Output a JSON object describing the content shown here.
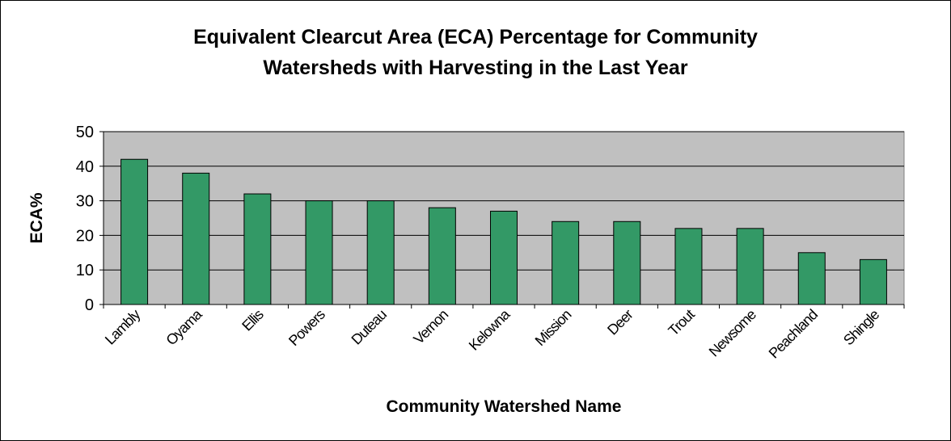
{
  "chart_data": {
    "type": "bar",
    "title": [
      "Equivalent Clearcut Area (ECA) Percentage for Community",
      "Watersheds with Harvesting in the Last Year"
    ],
    "x_label": "Community Watershed Name",
    "y_label": "ECA%",
    "categories": [
      "Lambly",
      "Oyama",
      "Ellis",
      "Powers",
      "Duteau",
      "Vernon",
      "Kelowna",
      "Mission",
      "Deer",
      "Trout",
      "Newsome",
      "Peachland",
      "Shingle"
    ],
    "values": [
      42,
      38,
      32,
      30,
      30,
      28,
      27,
      24,
      24,
      22,
      22,
      15,
      13
    ],
    "color": "#339966",
    "ylim": [
      0,
      50
    ],
    "yticks": [
      0,
      10,
      20,
      30,
      40,
      50
    ],
    "grid": true
  }
}
